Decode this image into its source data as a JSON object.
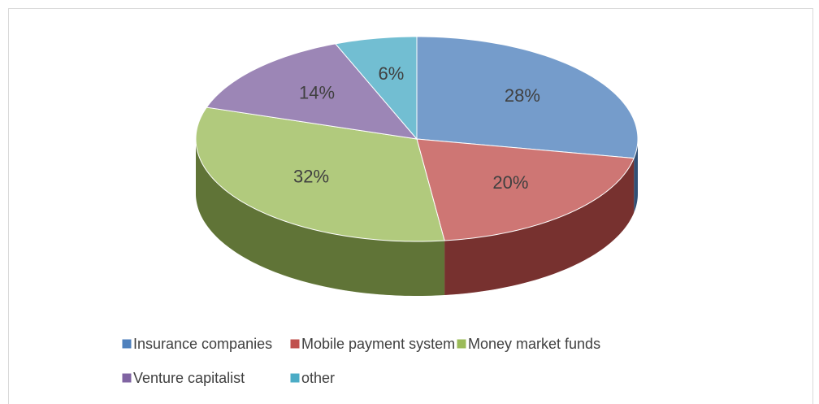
{
  "chart_data": {
    "type": "pie",
    "categories": [
      "Insurance companies",
      "Mobile payment system",
      "Money market funds",
      "Venture capitalist",
      "other"
    ],
    "values": [
      28,
      20,
      32,
      14,
      6
    ],
    "value_labels": [
      "28%",
      "20%",
      "32%",
      "14%",
      "6%"
    ],
    "colors": [
      "#4f81bd",
      "#c0504d",
      "#9bbb59",
      "#8064a2",
      "#4bacc6"
    ],
    "legend": "bottom"
  }
}
